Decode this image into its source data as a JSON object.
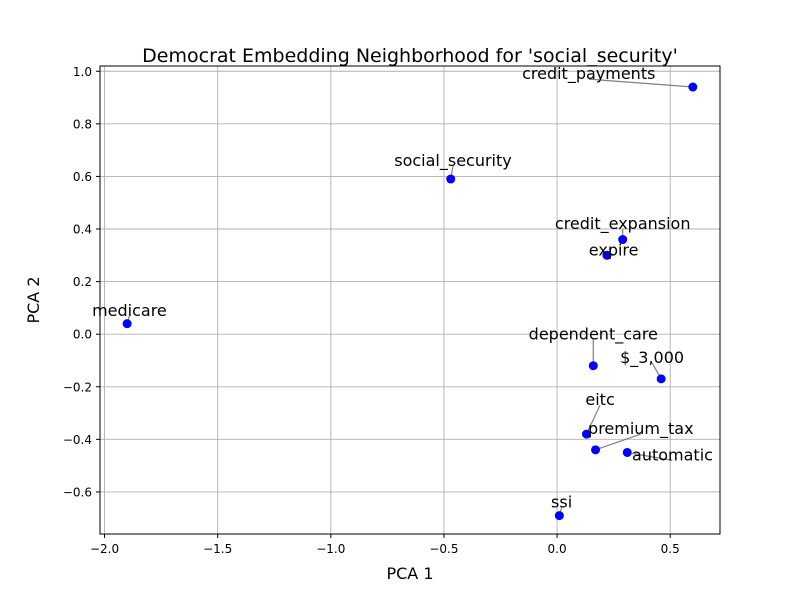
{
  "chart_data": {
    "type": "scatter",
    "title": "Democrat Embedding Neighborhood for 'social_security'",
    "xlabel": "PCA 1",
    "ylabel": "PCA 2",
    "xlim": [
      -2.02,
      0.72
    ],
    "ylim": [
      -0.76,
      1.02
    ],
    "xticks": [
      -2.0,
      -1.5,
      -1.0,
      -0.5,
      0.0,
      0.5
    ],
    "yticks": [
      -0.6,
      -0.4,
      -0.2,
      0.0,
      0.2,
      0.4,
      0.6,
      0.8,
      1.0
    ],
    "xtick_labels": [
      "−2.0",
      "−1.5",
      "−1.0",
      "−0.5",
      "0.0",
      "0.5"
    ],
    "ytick_labels": [
      "−0.6",
      "−0.4",
      "−0.2",
      "0.0",
      "0.2",
      "0.4",
      "0.6",
      "0.8",
      "1.0"
    ],
    "grid": true,
    "marker_color": "#0000ff",
    "leader_line_color": "#808080",
    "points": [
      {
        "label": "credit_payments",
        "x": 0.6,
        "y": 0.94,
        "label_x": 0.14,
        "label_y": 0.97
      },
      {
        "label": "social_security",
        "x": -0.47,
        "y": 0.59,
        "label_x": -0.46,
        "label_y": 0.64
      },
      {
        "label": "credit_expansion",
        "x": 0.29,
        "y": 0.36,
        "label_x": 0.29,
        "label_y": 0.4
      },
      {
        "label": "expire",
        "x": 0.22,
        "y": 0.3,
        "label_x": 0.25,
        "label_y": 0.3
      },
      {
        "label": "medicare",
        "x": -1.9,
        "y": 0.04,
        "label_x": -1.89,
        "label_y": 0.07
      },
      {
        "label": "dependent_care",
        "x": 0.16,
        "y": -0.12,
        "label_x": 0.16,
        "label_y": -0.02
      },
      {
        "label": "$_3,000",
        "x": 0.46,
        "y": -0.17,
        "label_x": 0.42,
        "label_y": -0.11
      },
      {
        "label": "eitc",
        "x": 0.13,
        "y": -0.38,
        "label_x": 0.19,
        "label_y": -0.27
      },
      {
        "label": "premium_tax",
        "x": 0.17,
        "y": -0.44,
        "label_x": 0.37,
        "label_y": -0.38
      },
      {
        "label": "automatic",
        "x": 0.31,
        "y": -0.45,
        "label_x": 0.51,
        "label_y": -0.48
      },
      {
        "label": "ssi",
        "x": 0.01,
        "y": -0.69,
        "label_x": 0.02,
        "label_y": -0.66
      }
    ]
  }
}
